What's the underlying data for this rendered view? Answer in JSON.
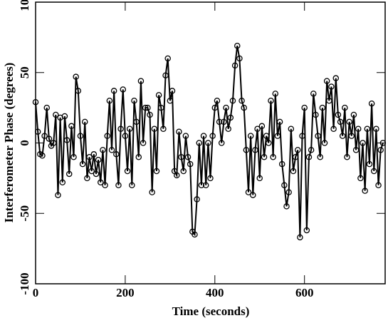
{
  "chart_data": {
    "type": "line",
    "xlabel": "Time (seconds)",
    "ylabel": "Interferometer Phase (degrees)",
    "color": "#000000",
    "xlim": [
      0,
      780
    ],
    "ylim": [
      -100,
      100
    ],
    "xticks": [
      0,
      200,
      400,
      600
    ],
    "yticks": [
      -100,
      -50,
      0,
      50,
      100
    ],
    "x": [
      0,
      5,
      10,
      15,
      20,
      25,
      30,
      35,
      40,
      45,
      50,
      55,
      60,
      65,
      70,
      75,
      80,
      85,
      90,
      95,
      100,
      105,
      110,
      115,
      120,
      125,
      130,
      135,
      140,
      145,
      150,
      155,
      160,
      165,
      170,
      175,
      180,
      185,
      190,
      195,
      200,
      205,
      210,
      215,
      220,
      225,
      230,
      235,
      240,
      245,
      250,
      255,
      260,
      265,
      270,
      275,
      280,
      285,
      290,
      295,
      300,
      305,
      310,
      315,
      320,
      325,
      330,
      335,
      340,
      345,
      350,
      355,
      360,
      365,
      370,
      375,
      380,
      385,
      390,
      395,
      400,
      405,
      410,
      415,
      420,
      425,
      430,
      435,
      440,
      445,
      450,
      455,
      460,
      465,
      470,
      475,
      480,
      485,
      490,
      495,
      500,
      505,
      510,
      515,
      520,
      525,
      530,
      535,
      540,
      545,
      550,
      555,
      560,
      565,
      570,
      575,
      580,
      585,
      590,
      595,
      600,
      605,
      610,
      615,
      620,
      625,
      630,
      635,
      640,
      645,
      650,
      655,
      660,
      665,
      670,
      675,
      680,
      685,
      690,
      695,
      700,
      705,
      710,
      715,
      720,
      725,
      730,
      735,
      740,
      745,
      750,
      755,
      760,
      765,
      770,
      775
    ],
    "values": [
      29,
      8,
      -8,
      -9,
      5,
      25,
      3,
      -2,
      0,
      20,
      -37,
      18,
      -28,
      19,
      2,
      -22,
      12,
      -10,
      47,
      37,
      5,
      -15,
      15,
      -25,
      -10,
      -20,
      -8,
      -22,
      -12,
      -28,
      -5,
      -30,
      5,
      30,
      -5,
      37,
      -8,
      -30,
      10,
      38,
      5,
      -20,
      10,
      -30,
      30,
      15,
      -10,
      44,
      0,
      25,
      25,
      20,
      -35,
      10,
      -20,
      34,
      25,
      10,
      48,
      60,
      30,
      37,
      -20,
      -23,
      8,
      -10,
      -20,
      5,
      -10,
      -15,
      -63,
      -65,
      -40,
      0,
      -30,
      5,
      -30,
      0,
      -25,
      5,
      25,
      30,
      15,
      0,
      15,
      25,
      10,
      18,
      30,
      55,
      69,
      60,
      30,
      25,
      -5,
      -35,
      5,
      -37,
      -5,
      10,
      -25,
      12,
      -10,
      5,
      0,
      30,
      -10,
      35,
      5,
      15,
      -15,
      -30,
      -45,
      -35,
      10,
      -20,
      -10,
      -5,
      -67,
      5,
      25,
      -62,
      -10,
      -5,
      35,
      20,
      5,
      -10,
      25,
      0,
      44,
      30,
      40,
      10,
      46,
      20,
      15,
      5,
      25,
      -10,
      15,
      5,
      20,
      -5,
      10,
      -25,
      0,
      -34,
      10,
      -15,
      28,
      -20,
      10,
      -30,
      -5,
      0
    ]
  }
}
